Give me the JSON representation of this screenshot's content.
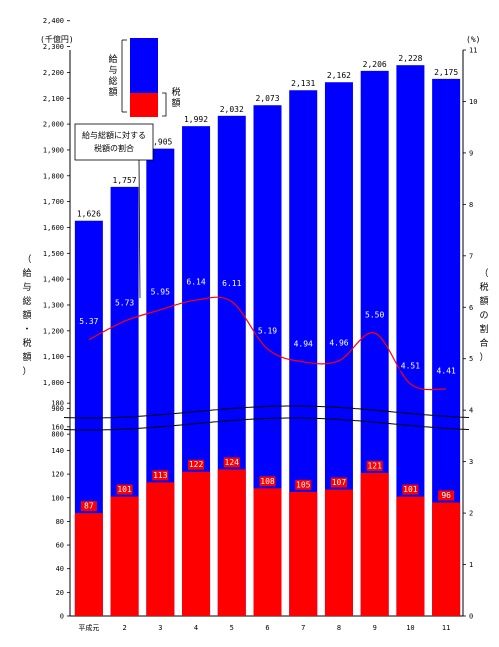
{
  "chart_data": {
    "type": "bar",
    "left_unit": "(千億円)",
    "right_unit": "(%)",
    "left_axis_title": "（給与総額・税額）",
    "right_axis_title": "（税額の割合）",
    "categories": [
      "平成元",
      "2",
      "3",
      "4",
      "5",
      "6",
      "7",
      "8",
      "9",
      "10",
      "11"
    ],
    "series": [
      {
        "name": "給与総額",
        "values": [
          1626,
          1757,
          1905,
          1992,
          2032,
          2073,
          2131,
          2162,
          2206,
          2228,
          2175
        ],
        "labels": [
          "1,626",
          "1,757",
          "1,905",
          "1,992",
          "2,032",
          "2,073",
          "2,131",
          "2,162",
          "2,206",
          "2,228",
          "2,175"
        ]
      },
      {
        "name": "税額",
        "values": [
          87,
          101,
          113,
          122,
          124,
          108,
          105,
          107,
          121,
          101,
          96
        ],
        "labels": [
          "87",
          "101",
          "113",
          "122",
          "124",
          "108",
          "105",
          "107",
          "121",
          "101",
          "96"
        ]
      },
      {
        "name": "給与総額に対する税額の割合",
        "values": [
          5.37,
          5.73,
          5.95,
          6.14,
          6.11,
          5.19,
          4.94,
          4.96,
          5.5,
          4.51,
          4.41
        ],
        "labels": [
          "5.37",
          "5.73",
          "5.95",
          "6.14",
          "6.11",
          "5.19",
          "4.94",
          "4.96",
          "5.50",
          "4.51",
          "4.41"
        ]
      }
    ],
    "left_ticks_upper": [
      "0",
      "800",
      "900",
      "1,000",
      "1,100",
      "1,200",
      "1,300",
      "1,400",
      "1,500",
      "1,600",
      "1,700",
      "1,800",
      "1,900",
      "2,000",
      "2,100",
      "2,200",
      "2,300",
      "2,400"
    ],
    "left_ticks_lower": [
      "0",
      "20",
      "40",
      "60",
      "80",
      "100",
      "120",
      "140",
      "160",
      "180"
    ],
    "right_ticks": [
      "0",
      "1",
      "2",
      "3",
      "4",
      "5",
      "6",
      "7",
      "8",
      "9",
      "10",
      "11"
    ],
    "right_ylim": [
      0,
      11
    ],
    "legend": {
      "total": "給与総額",
      "tax": "税額",
      "position": "top-left"
    },
    "annotation": {
      "line1": "給与総額に対する",
      "line2": "税額の割合"
    },
    "colors": {
      "total": "#0000ff",
      "tax": "#ff0000",
      "ratio": "#ff0000"
    },
    "grid": false
  }
}
